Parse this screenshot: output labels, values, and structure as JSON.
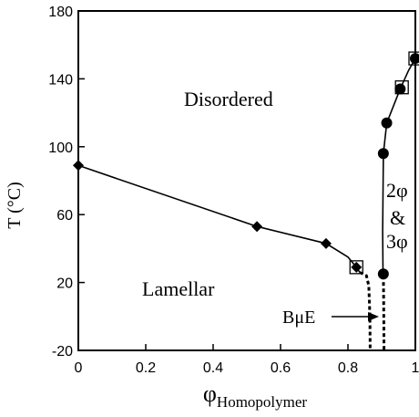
{
  "chart_data": {
    "type": "scatter",
    "title": "",
    "xlabel": "φHomopolymer",
    "xlabel_main": "φ",
    "xlabel_sub": "Homopolymer",
    "ylabel": "T (°C)",
    "xlim": [
      0,
      1
    ],
    "ylim": [
      -20,
      180
    ],
    "xticks": [
      "0",
      "0.2",
      "0.4",
      "0.6",
      "0.8",
      "1"
    ],
    "xtick_values": [
      0,
      0.2,
      0.4,
      0.6,
      0.8,
      1
    ],
    "yticks": [
      "-20",
      "20",
      "60",
      "100",
      "140",
      "180"
    ],
    "ytick_values": [
      -20,
      20,
      60,
      100,
      140,
      180
    ],
    "grid": false,
    "annotations": {
      "disordered": "Disordered",
      "lamellar": "Lamellar",
      "bme": "BμE",
      "two_phase": "2φ",
      "amp": "&",
      "three_phase": "3φ"
    },
    "series": [
      {
        "marker": "diamond",
        "points": [
          [
            0,
            89
          ],
          [
            0.53,
            53
          ],
          [
            0.735,
            43
          ],
          [
            0.825,
            29
          ]
        ]
      },
      {
        "marker": "circle",
        "points": [
          [
            0.905,
            25
          ],
          [
            0.905,
            96
          ],
          [
            0.915,
            114
          ],
          [
            0.955,
            134
          ],
          [
            1.0,
            152
          ]
        ]
      },
      {
        "marker": "open-square",
        "points": [
          [
            0.825,
            29
          ],
          [
            0.96,
            135
          ],
          [
            1.0,
            152
          ]
        ]
      }
    ],
    "lines": [
      {
        "style": "solid",
        "points": [
          [
            0,
            89
          ],
          [
            0.53,
            53
          ],
          [
            0.735,
            43
          ],
          [
            0.8,
            35
          ],
          [
            0.825,
            29
          ],
          [
            0.835,
            26
          ]
        ]
      },
      {
        "style": "dotted",
        "points": [
          [
            0.835,
            26
          ],
          [
            0.855,
            24
          ],
          [
            0.862,
            18
          ],
          [
            0.865,
            0
          ],
          [
            0.866,
            -20
          ]
        ]
      },
      {
        "style": "solid",
        "points": [
          [
            0.905,
            96
          ],
          [
            0.915,
            114
          ],
          [
            0.955,
            134
          ],
          [
            0.98,
            145
          ],
          [
            1.0,
            152
          ]
        ]
      },
      {
        "style": "solid",
        "points": [
          [
            0.905,
            96
          ],
          [
            0.903,
            50
          ],
          [
            0.904,
            25
          ],
          [
            0.905,
            24
          ]
        ]
      },
      {
        "style": "dotted",
        "points": [
          [
            0.905,
            24
          ],
          [
            0.906,
            10
          ],
          [
            0.907,
            -20
          ]
        ]
      },
      {
        "style": "solid",
        "points": [
          [
            1.0,
            152
          ],
          [
            1.0,
            -20
          ]
        ]
      }
    ]
  }
}
